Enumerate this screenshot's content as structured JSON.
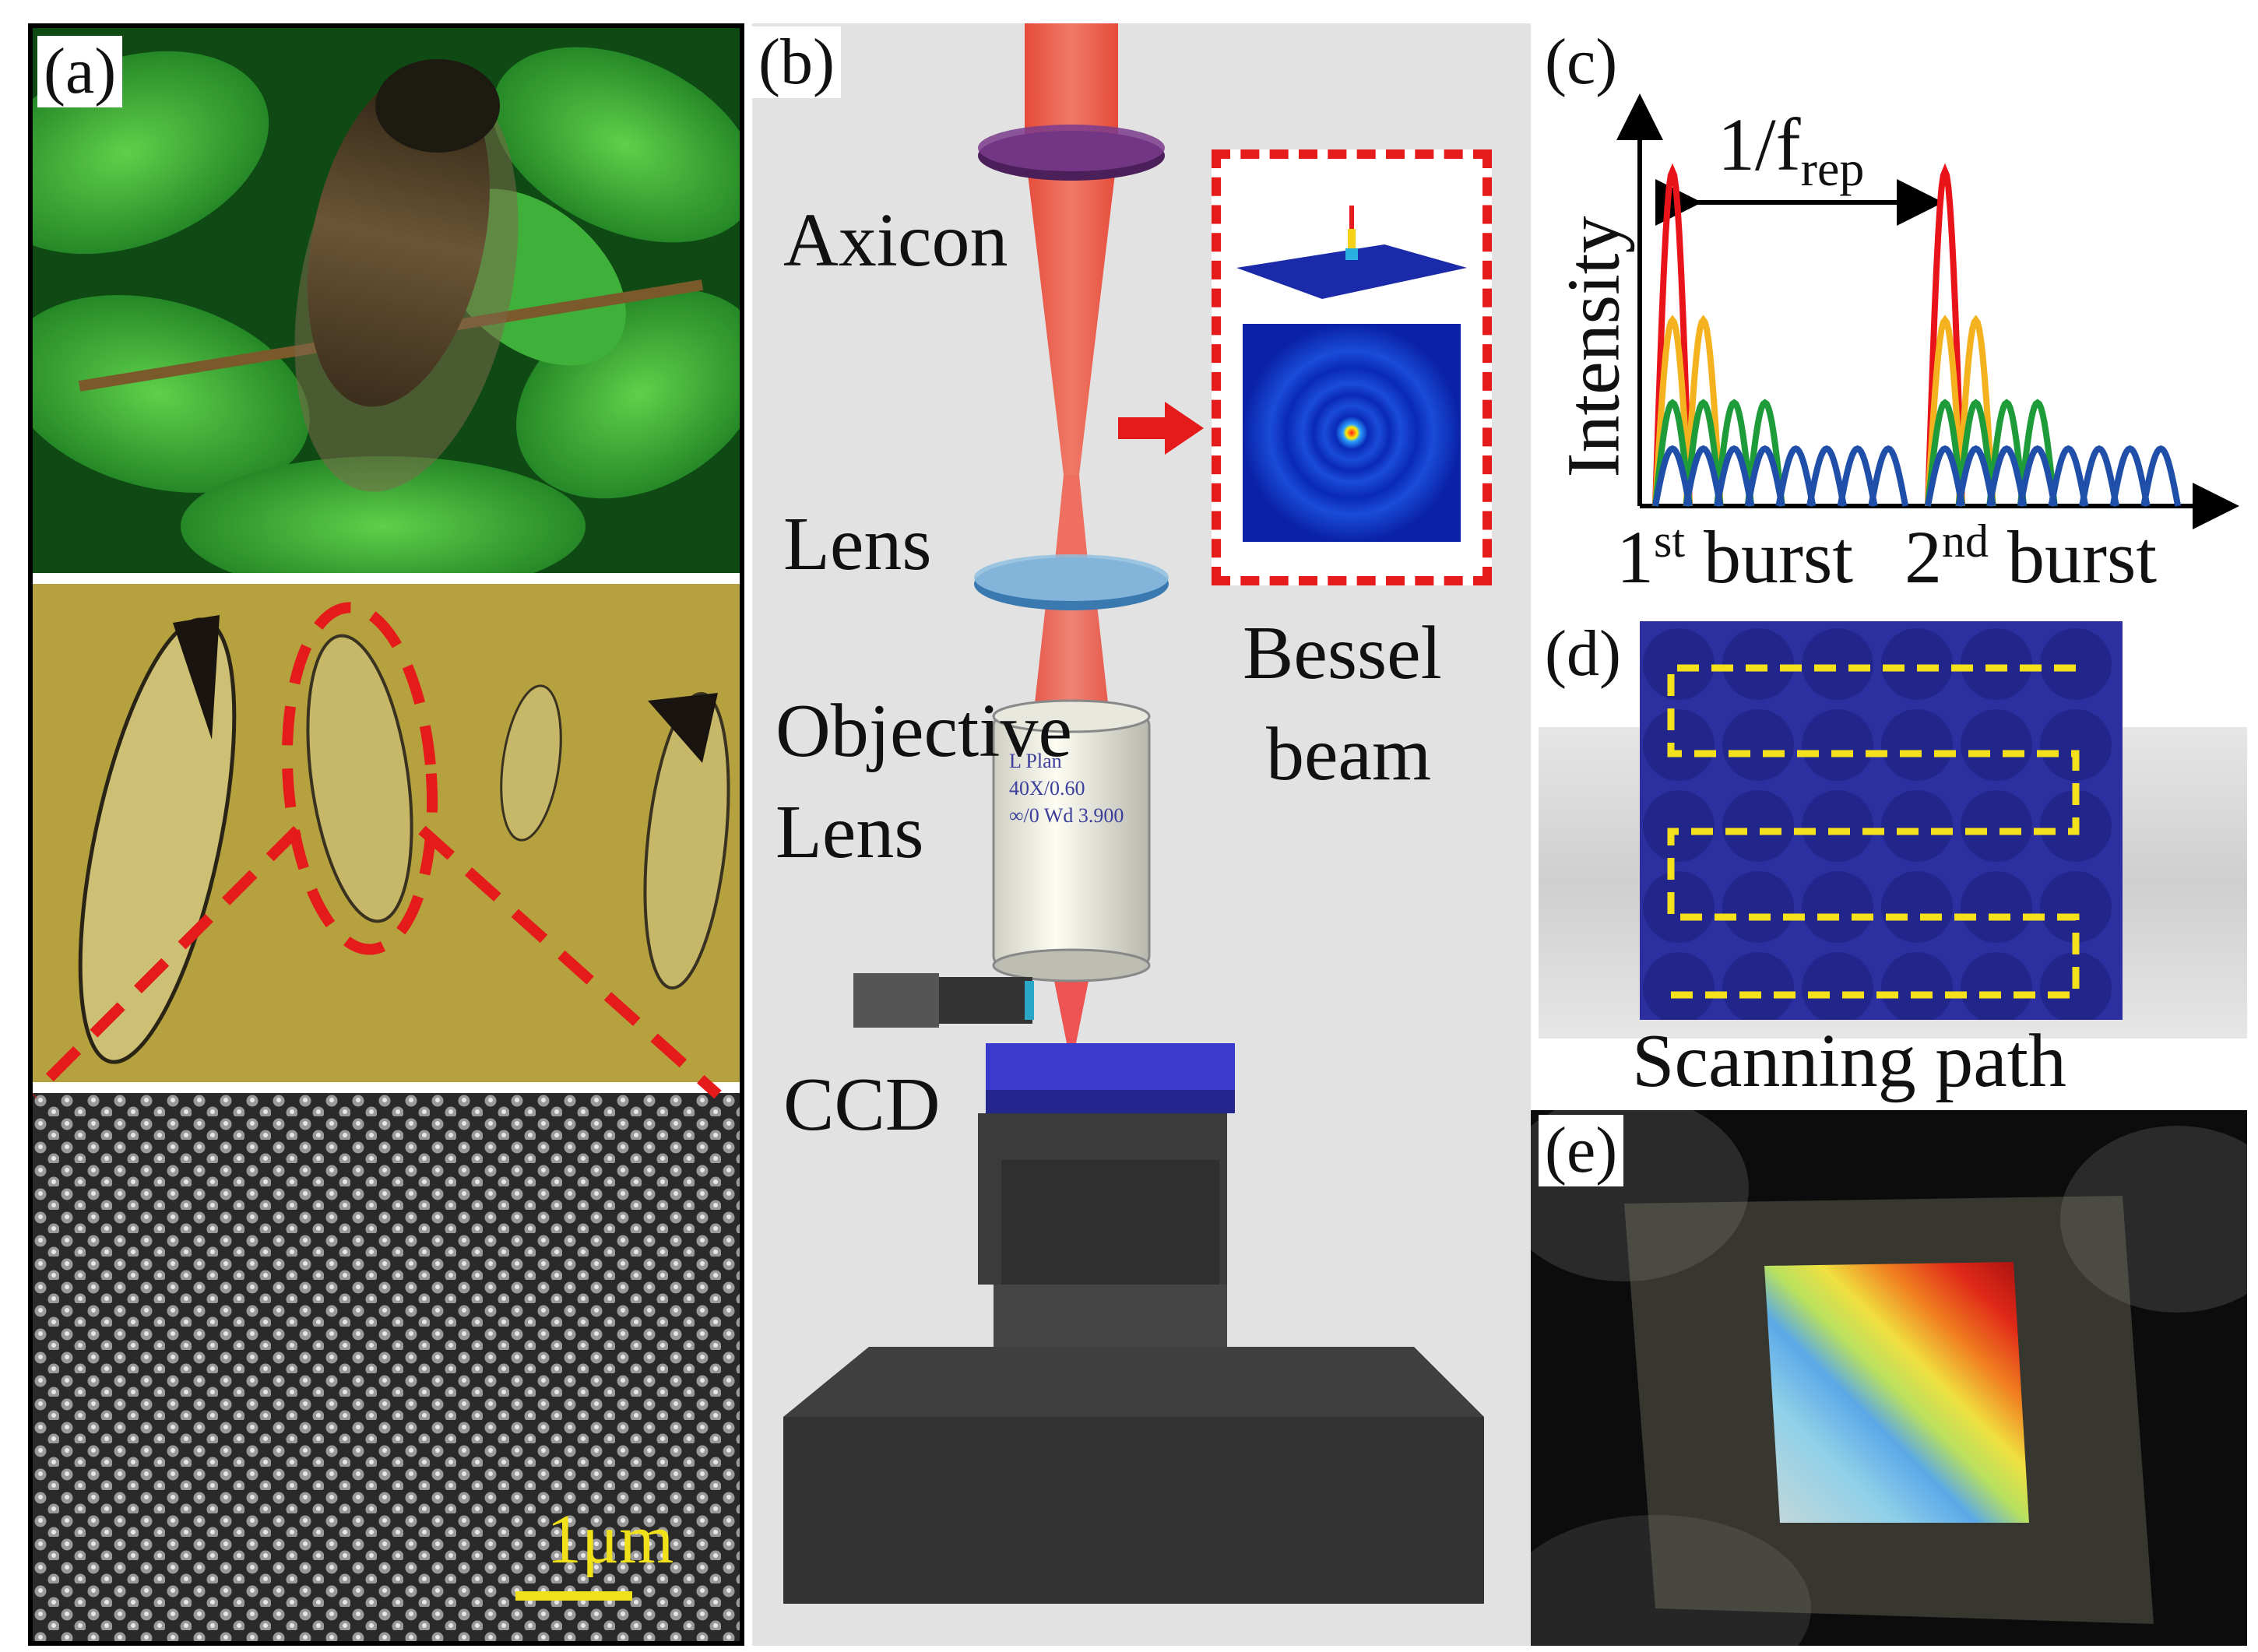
{
  "figure": {
    "panels": {
      "a": {
        "label": "(a)",
        "scale_bar": "1μm"
      },
      "b": {
        "label": "(b)",
        "components": {
          "axicon": "Axicon",
          "lens": "Lens",
          "objective_line1": "Objective",
          "objective_line2": "Lens",
          "ccd": "CCD"
        },
        "inset_line1": "Bessel",
        "inset_line2": "beam",
        "objective_text": [
          "L Plan",
          "40X/0.60",
          "∞/0 Wd 3.900"
        ]
      },
      "c": {
        "label": "(c)",
        "period_label": "1/f",
        "period_subscript": "rep",
        "ylabel": "Intensity",
        "burst1_num": "1",
        "burst1_sup": "st",
        "burst1_word": "burst",
        "burst2_num": "2",
        "burst2_sup": "nd",
        "burst2_word": "burst"
      },
      "d": {
        "label": "(d)",
        "caption": "Scanning path"
      },
      "e": {
        "label": "(e)"
      }
    }
  },
  "chart_data": {
    "type": "line",
    "ylabel": "Intensity",
    "series": [
      {
        "color": "#e8141a",
        "pulses": 1
      },
      {
        "color": "#f5b21f",
        "pulses": 2
      },
      {
        "color": "#1f9c3a",
        "pulses": 4
      },
      {
        "color": "#1f4fa8",
        "pulses": 8
      }
    ],
    "colors": {
      "accent_red": "#e51a1a",
      "path_yellow": "#f4e01b",
      "grid_blue": "#2b2fa0"
    }
  }
}
